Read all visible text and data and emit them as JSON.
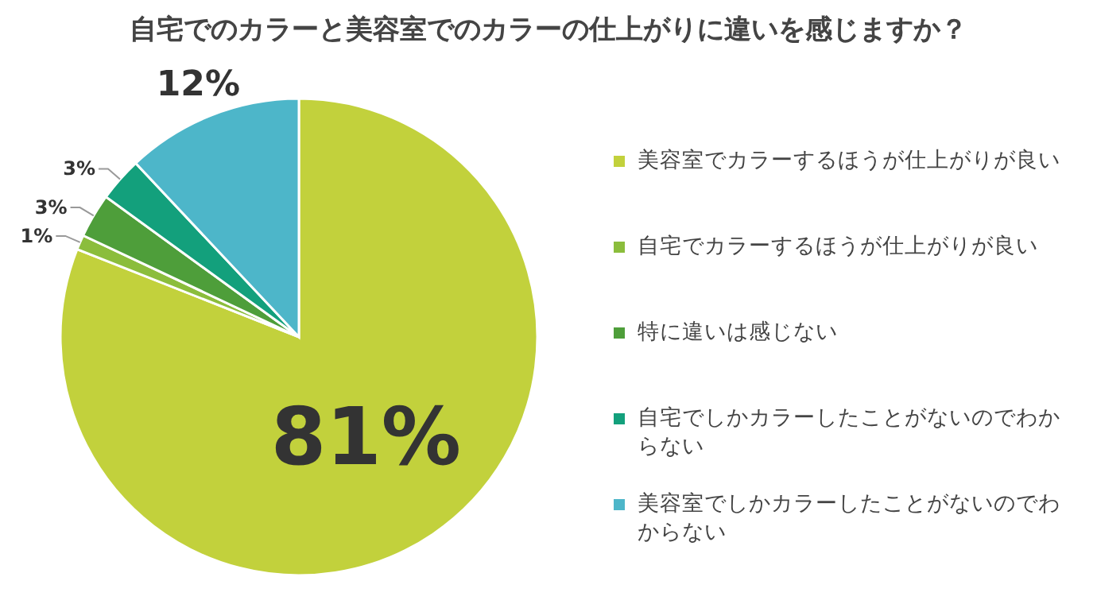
{
  "chart_data": {
    "type": "pie",
    "title": "自宅でのカラーと美容室でのカラーの仕上がりに違いを感じますか？",
    "categories": [
      "美容室でカラーするほうが仕上がりが良い",
      "自宅でカラーするほうが仕上がりが良い",
      "特に違いは感じない",
      "自宅でしかカラーしたことがないのでわからない",
      "美容室でしかカラーしたことがないのでわからない"
    ],
    "values": [
      81,
      1,
      3,
      3,
      12
    ],
    "colors": [
      "#c2d13c",
      "#8bbd3c",
      "#4e9e3a",
      "#13a07c",
      "#4db6c9"
    ],
    "value_labels": [
      "81%",
      "1%",
      "3%",
      "3%",
      "12%"
    ],
    "legend": "right"
  }
}
